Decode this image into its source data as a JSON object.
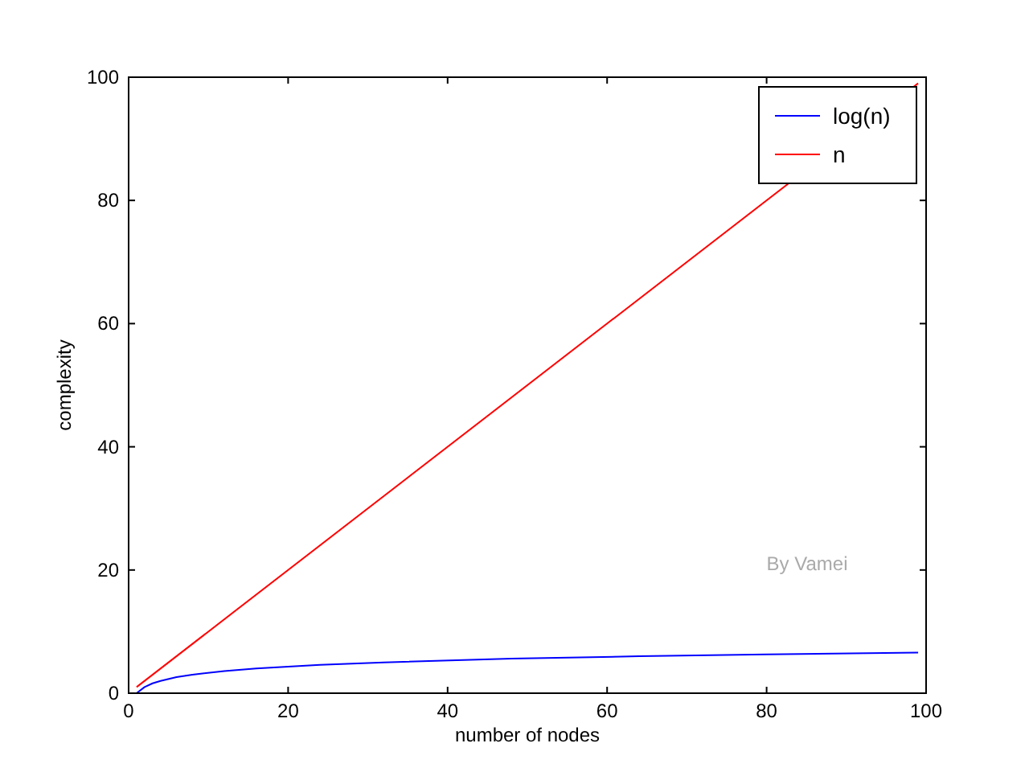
{
  "chart_data": {
    "type": "line",
    "xlabel": "number of nodes",
    "ylabel": "complexity",
    "xlim": [
      0,
      100
    ],
    "ylim": [
      0,
      100
    ],
    "xticks": [
      0,
      20,
      40,
      60,
      80,
      100
    ],
    "yticks": [
      0,
      20,
      40,
      60,
      80,
      100
    ],
    "grid": false,
    "legend": "top right",
    "marker": "none",
    "line_style": "solid",
    "series": [
      {
        "name": "log(n)",
        "color": "#0000ff",
        "x": [
          1,
          2,
          3,
          4,
          6,
          8,
          12,
          16,
          24,
          32,
          48,
          64,
          80,
          99
        ],
        "values": [
          0,
          1,
          1.6,
          2,
          2.6,
          3,
          3.6,
          4,
          4.6,
          5,
          5.6,
          6,
          6.3,
          6.6
        ]
      },
      {
        "name": "n",
        "color": "#ff0000",
        "x": [
          1,
          99
        ],
        "values": [
          1,
          99
        ]
      }
    ],
    "annotations": [
      "By Vamei"
    ]
  }
}
